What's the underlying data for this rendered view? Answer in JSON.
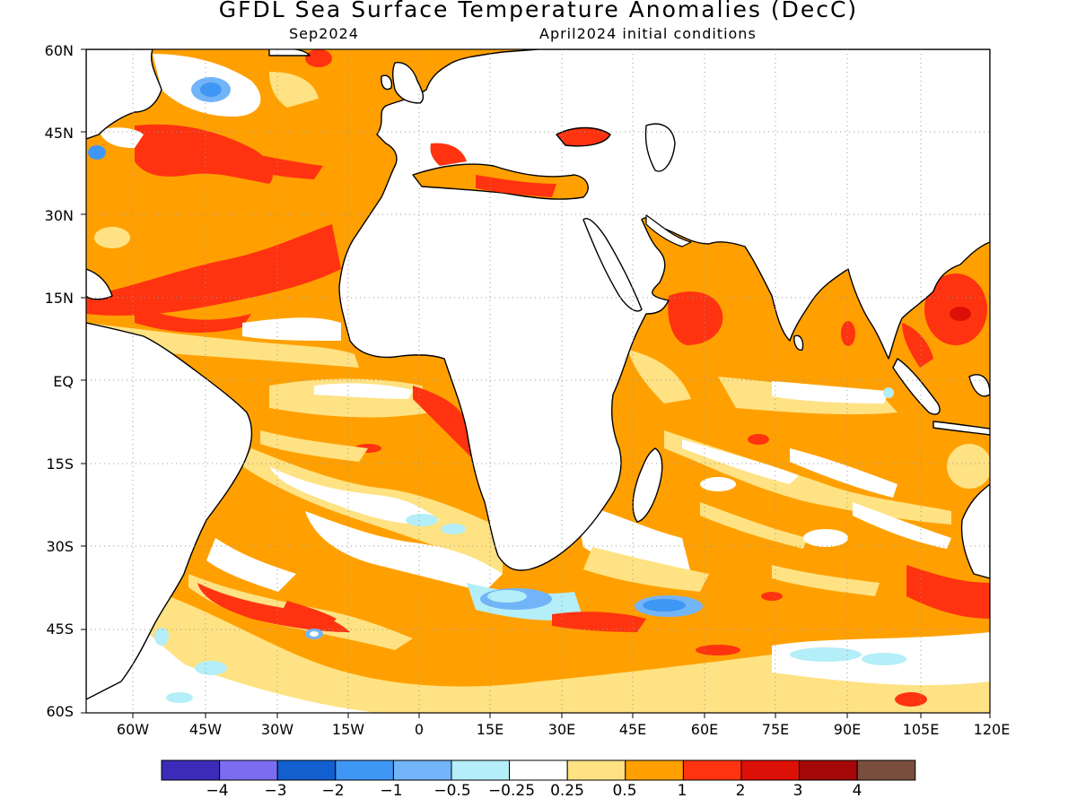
{
  "title": "GFDL Sea Surface Temperature Anomalies (DecC)",
  "forecast_month": "Sep2024",
  "init_conditions": "April2024 initial conditions",
  "map": {
    "lat_labels": [
      "60N",
      "45N",
      "30N",
      "15N",
      "EQ",
      "15S",
      "30S",
      "45S",
      "60S"
    ],
    "lon_labels": [
      "60W",
      "45W",
      "30W",
      "15W",
      "0",
      "15E",
      "30E",
      "45E",
      "60E",
      "75E",
      "90E",
      "105E",
      "120E"
    ],
    "lon_range": [
      -70,
      120
    ],
    "lat_range": [
      -60,
      60
    ],
    "grid": "dotted"
  },
  "colorbar": {
    "colors": [
      "#3a2cb8",
      "#7b6cf0",
      "#1260d0",
      "#3e97f5",
      "#72b4f8",
      "#b4eef8",
      "#ffffff",
      "#fee283",
      "#ffa000",
      "#ff3310",
      "#dd1008",
      "#a40808",
      "#7a4e3e"
    ],
    "labels": [
      "−4",
      "−3",
      "−2",
      "−1",
      "−0.5",
      "−0.25",
      "0.25",
      "0.5",
      "1",
      "2",
      "3",
      "4"
    ]
  }
}
